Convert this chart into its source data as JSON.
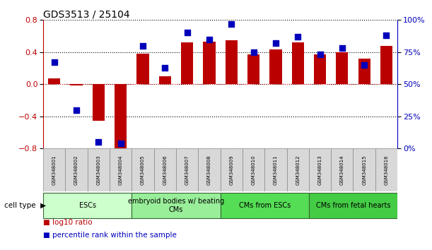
{
  "title": "GDS3513 / 25104",
  "samples": [
    "GSM348001",
    "GSM348002",
    "GSM348003",
    "GSM348004",
    "GSM348005",
    "GSM348006",
    "GSM348007",
    "GSM348008",
    "GSM348009",
    "GSM348010",
    "GSM348011",
    "GSM348012",
    "GSM348013",
    "GSM348014",
    "GSM348015",
    "GSM348016"
  ],
  "log10_ratio": [
    0.07,
    -0.02,
    -0.46,
    -0.82,
    0.38,
    0.1,
    0.52,
    0.53,
    0.55,
    0.37,
    0.43,
    0.52,
    0.37,
    0.4,
    0.32,
    0.48
  ],
  "percentile_rank": [
    67,
    30,
    5,
    4,
    80,
    63,
    90,
    85,
    97,
    75,
    82,
    87,
    73,
    78,
    65,
    88
  ],
  "ylim_left": [
    -0.8,
    0.8
  ],
  "ylim_right": [
    0,
    100
  ],
  "yticks_left": [
    -0.8,
    -0.4,
    0.0,
    0.4,
    0.8
  ],
  "yticks_right": [
    0,
    25,
    50,
    75,
    100
  ],
  "ytick_labels_right": [
    "0%",
    "25%",
    "50%",
    "75%",
    "100%"
  ],
  "bar_color": "#bb0000",
  "dot_color": "#0000bb",
  "cell_type_groups": [
    {
      "label": "ESCs",
      "start": 0,
      "end": 3,
      "color": "#ccffcc"
    },
    {
      "label": "embryoid bodies w/ beating\nCMs",
      "start": 4,
      "end": 7,
      "color": "#99ee99"
    },
    {
      "label": "CMs from ESCs",
      "start": 8,
      "end": 11,
      "color": "#55dd55"
    },
    {
      "label": "CMs from fetal hearts",
      "start": 12,
      "end": 15,
      "color": "#44cc44"
    }
  ],
  "bar_width": 0.55,
  "dot_size": 30,
  "grid_color": "#000000",
  "zero_line_color": "#ff4444",
  "background_color": "#ffffff",
  "cell_type_label": "cell type",
  "legend_line1": "log10 ratio",
  "legend_line2": "percentile rank within the sample",
  "legend_color1": "#bb0000",
  "legend_color2": "#0000bb"
}
